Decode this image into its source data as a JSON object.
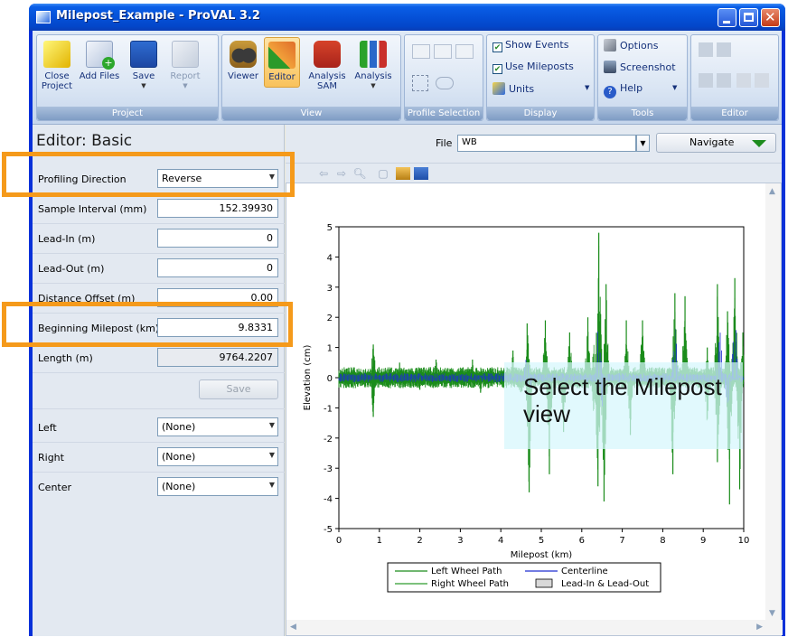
{
  "window": {
    "title": "Milepost_Example - ProVAL 3.2"
  },
  "ribbon": {
    "groups": {
      "project": "Project",
      "view": "View",
      "profile_selection": "Profile Selection",
      "display": "Display",
      "tools": "Tools",
      "editor": "Editor"
    },
    "buttons": {
      "close_project": "Close Project",
      "add_files": "Add Files",
      "save": "Save",
      "report": "Report",
      "viewer": "Viewer",
      "editor": "Editor",
      "analysis_sam": "Analysis SAM",
      "analysis": "Analysis"
    },
    "display": {
      "show_events": "Show Events",
      "use_mileposts": "Use Mileposts",
      "units": "Units"
    },
    "tools": {
      "options": "Options",
      "screenshot": "Screenshot",
      "help": "Help"
    }
  },
  "editor_panel": {
    "title": "Editor: Basic",
    "fields": {
      "profiling_direction": {
        "label": "Profiling Direction",
        "value": "Reverse"
      },
      "sample_interval": {
        "label": "Sample Interval (mm)",
        "value": "152.39930"
      },
      "lead_in": {
        "label": "Lead-In (m)",
        "value": "0"
      },
      "lead_out": {
        "label": "Lead-Out (m)",
        "value": "0"
      },
      "distance_offset": {
        "label": "Distance Offset (m)",
        "value": "0.00"
      },
      "beginning_milepost": {
        "label": "Beginning Milepost (km)",
        "value": "9.8331"
      },
      "length": {
        "label": "Length (m)",
        "value": "9764.2207"
      }
    },
    "save_label": "Save",
    "channels": {
      "left": {
        "label": "Left",
        "value": "(None)"
      },
      "right": {
        "label": "Right",
        "value": "(None)"
      },
      "center": {
        "label": "Center",
        "value": "(None)"
      }
    }
  },
  "file_bar": {
    "file_label": "File",
    "file_value": "WB",
    "navigate_label": "Navigate"
  },
  "annotation": {
    "text": "Select the Milepost view",
    "highlight_color": "#f59a1b"
  },
  "chart_data": {
    "type": "line",
    "xlabel": "Milepost (km)",
    "ylabel": "Elevation (cm)",
    "xlim": [
      0,
      10
    ],
    "ylim": [
      -5,
      5
    ],
    "xticks": [
      0,
      1,
      2,
      3,
      4,
      5,
      6,
      7,
      8,
      9,
      10
    ],
    "yticks": [
      -5,
      -4,
      -3,
      -2,
      -1,
      0,
      1,
      2,
      3,
      4,
      5
    ],
    "legend": {
      "placement": "bottom-center",
      "entries": [
        "Left Wheel Path",
        "Right Wheel Path",
        "Centerline",
        "Lead-In & Lead-Out"
      ]
    },
    "series": [
      {
        "name": "Left Wheel Path",
        "color": "#1a8c1a",
        "peaks": [
          [
            0.0,
            0.1
          ],
          [
            0.85,
            1.1
          ],
          [
            1.5,
            0.5
          ],
          [
            2.4,
            0.6
          ],
          [
            3.3,
            0.6
          ],
          [
            4.3,
            0.9
          ],
          [
            4.65,
            1.8
          ],
          [
            5.1,
            1.9
          ],
          [
            5.7,
            1.5
          ],
          [
            6.15,
            2.0
          ],
          [
            6.42,
            4.8
          ],
          [
            6.6,
            3.1
          ],
          [
            7.1,
            1.9
          ],
          [
            7.5,
            1.9
          ],
          [
            8.3,
            2.8
          ],
          [
            8.55,
            2.7
          ],
          [
            9.1,
            1.0
          ],
          [
            9.35,
            3.1
          ],
          [
            9.6,
            2.2
          ],
          [
            9.78,
            3.3
          ],
          [
            9.98,
            1.5
          ]
        ],
        "troughs": [
          [
            0.85,
            -1.3
          ],
          [
            2.0,
            -0.4
          ],
          [
            3.5,
            -0.5
          ],
          [
            4.7,
            -3.8
          ],
          [
            5.2,
            -3.2
          ],
          [
            5.55,
            -1.8
          ],
          [
            6.4,
            -3.6
          ],
          [
            6.55,
            -4.1
          ],
          [
            7.2,
            -1.9
          ],
          [
            8.25,
            -3.2
          ],
          [
            9.35,
            -2.8
          ],
          [
            9.65,
            -4.2
          ],
          [
            9.9,
            -3.7
          ]
        ]
      },
      {
        "name": "Centerline",
        "color": "#1d2fd0",
        "peaks": [
          [
            4.65,
            1.2
          ],
          [
            6.42,
            2.5
          ],
          [
            8.3,
            2.1
          ],
          [
            9.4,
            2.3
          ],
          [
            9.78,
            2.4
          ]
        ],
        "troughs": [
          [
            4.7,
            -0.8
          ],
          [
            6.5,
            -1.1
          ],
          [
            9.6,
            -1.2
          ]
        ]
      },
      {
        "name": "Right Wheel Path",
        "color": "#2e9c2e",
        "peaks": [
          [
            0.5,
            0.3
          ],
          [
            2.8,
            0.4
          ],
          [
            4.4,
            0.5
          ],
          [
            6.3,
            1.2
          ],
          [
            8.6,
            1.1
          ]
        ],
        "troughs": [
          [
            4.5,
            -0.9
          ],
          [
            6.3,
            -1.5
          ],
          [
            9.1,
            -1.8
          ]
        ]
      }
    ]
  }
}
